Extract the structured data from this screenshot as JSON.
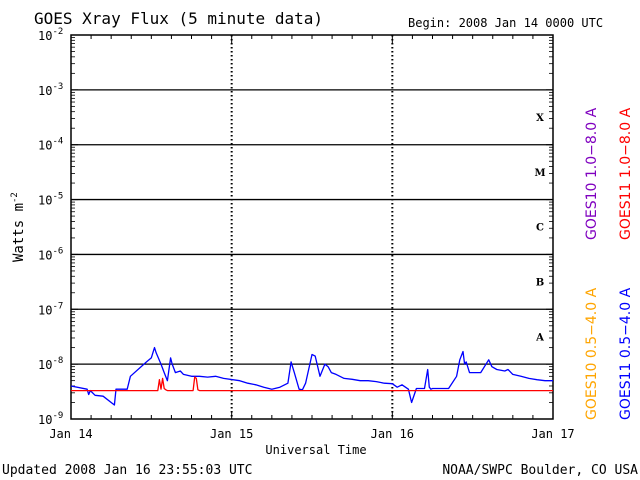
{
  "chart_data": {
    "type": "line",
    "title": "GOES Xray Flux (5 minute data)",
    "begin_label": "Begin:  2008 Jan 14 0000 UTC",
    "ylabel_base": "Watts m",
    "ylabel_exp": "-2",
    "xlabel": "Universal Time",
    "x_ticks": [
      "Jan 14",
      "Jan 15",
      "Jan 16",
      "Jan 17"
    ],
    "y_scale": "log",
    "ylim": [
      1e-09,
      0.01
    ],
    "y_ticks": [
      {
        "base": "10",
        "exp": "-9",
        "value": 1e-09
      },
      {
        "base": "10",
        "exp": "-8",
        "value": 1e-08
      },
      {
        "base": "10",
        "exp": "-7",
        "value": 1e-07
      },
      {
        "base": "10",
        "exp": "-6",
        "value": 1e-06
      },
      {
        "base": "10",
        "exp": "-5",
        "value": 1e-05
      },
      {
        "base": "10",
        "exp": "-4",
        "value": 0.0001
      },
      {
        "base": "10",
        "exp": "-3",
        "value": 0.001
      },
      {
        "base": "10",
        "exp": "-2",
        "value": 0.01
      }
    ],
    "flare_classes": [
      {
        "label": "A",
        "value": 3.2e-08
      },
      {
        "label": "B",
        "value": 3.2e-07
      },
      {
        "label": "C",
        "value": 3.2e-06
      },
      {
        "label": "M",
        "value": 3.2e-05
      },
      {
        "label": "X",
        "value": 0.00032
      }
    ],
    "x_unit": "day",
    "xlim": [
      0,
      3
    ],
    "series": [
      {
        "name": "GOES11 0.5−4.0 A",
        "color": "#0000ff",
        "x": [
          0.0,
          0.1,
          0.11,
          0.12,
          0.15,
          0.2,
          0.27,
          0.28,
          0.35,
          0.37,
          0.47,
          0.5,
          0.52,
          0.53,
          0.56,
          0.58,
          0.6,
          0.62,
          0.63,
          0.65,
          0.68,
          0.7,
          0.75,
          0.8,
          0.85,
          0.9,
          0.95,
          1.05,
          1.1,
          1.15,
          1.2,
          1.25,
          1.3,
          1.35,
          1.37,
          1.39,
          1.42,
          1.44,
          1.46,
          1.5,
          1.52,
          1.55,
          1.58,
          1.6,
          1.62,
          1.65,
          1.7,
          1.75,
          1.8,
          1.85,
          1.9,
          1.95,
          2.0,
          2.03,
          2.06,
          2.1,
          2.12,
          2.15,
          2.2,
          2.22,
          2.23,
          2.24,
          2.25,
          2.28,
          2.3,
          2.35,
          2.4,
          2.42,
          2.44,
          2.45,
          2.46,
          2.48,
          2.5,
          2.52,
          2.55,
          2.6,
          2.62,
          2.65,
          2.7,
          2.72,
          2.75,
          2.8,
          2.85,
          2.9,
          2.95,
          3.0
        ],
        "y": [
          4e-09,
          3.5e-09,
          2.8e-09,
          3.3e-09,
          2.7e-09,
          2.6e-09,
          1.8e-09,
          3.5e-09,
          3.5e-09,
          6e-09,
          1.1e-08,
          1.3e-08,
          2e-08,
          1.6e-08,
          1e-08,
          7e-09,
          5e-09,
          1.3e-08,
          1e-08,
          7e-09,
          7.5e-09,
          6.5e-09,
          6e-09,
          6e-09,
          5.8e-09,
          6e-09,
          5.5e-09,
          5e-09,
          4.5e-09,
          4.2e-09,
          3.8e-09,
          3.5e-09,
          3.8e-09,
          4.5e-09,
          1.1e-08,
          7e-09,
          3.5e-09,
          3.4e-09,
          4.5e-09,
          1.5e-08,
          1.4e-08,
          6e-09,
          1e-08,
          9e-09,
          7e-09,
          6.5e-09,
          5.5e-09,
          5.3e-09,
          5e-09,
          5e-09,
          4.8e-09,
          4.5e-09,
          4.4e-09,
          3.8e-09,
          4.2e-09,
          3.5e-09,
          2e-09,
          3.6e-09,
          3.6e-09,
          8e-09,
          3.8e-09,
          3.5e-09,
          3.6e-09,
          3.6e-09,
          3.6e-09,
          3.6e-09,
          6e-09,
          1.2e-08,
          1.7e-08,
          1e-08,
          1.1e-08,
          7e-09,
          7e-09,
          7e-09,
          7e-09,
          1.2e-08,
          9e-09,
          8e-09,
          7.5e-09,
          8e-09,
          6.5e-09,
          6e-09,
          5.5e-09,
          5.2e-09,
          5e-09,
          5e-09
        ]
      },
      {
        "name": "GOES11 1.0−8.0 A",
        "color": "#ff0000",
        "x": [
          0.0,
          0.54,
          0.55,
          0.56,
          0.57,
          0.58,
          0.59,
          0.6,
          0.61,
          0.62,
          0.63,
          0.64,
          0.65,
          0.66,
          0.67,
          0.68,
          0.69,
          0.7,
          0.72,
          0.73,
          0.74,
          0.75,
          0.76,
          0.77,
          0.78,
          0.79,
          0.8,
          3.0
        ],
        "y": [
          3.3e-09,
          3.3e-09,
          5.2e-09,
          3.5e-09,
          5.5e-09,
          3.6e-09,
          3.4e-09,
          3.3e-09,
          3.3e-09,
          3.3e-09,
          3.3e-09,
          3.3e-09,
          3.3e-09,
          3.3e-09,
          3.3e-09,
          3.3e-09,
          3.3e-09,
          3.3e-09,
          3.3e-09,
          3.3e-09,
          3.3e-09,
          3.3e-09,
          3.3e-09,
          5.8e-09,
          5.5e-09,
          3.4e-09,
          3.3e-09,
          3.3e-09
        ]
      }
    ],
    "legend": [
      {
        "text": "GOES10 1.0−8.0 A",
        "color": "#7f00bf"
      },
      {
        "text": "GOES11 1.0−8.0 A",
        "color": "#ff0000"
      },
      {
        "text": "GOES10 0.5−4.0 A",
        "color": "#ffa500"
      },
      {
        "text": "GOES11 0.5−4.0 A",
        "color": "#0000ff"
      }
    ],
    "legend_placement": "right, rotated vertical"
  },
  "footer": {
    "updated": "Updated 2008 Jan 16 23:55:03 UTC",
    "credit": "NOAA/SWPC Boulder, CO USA"
  }
}
